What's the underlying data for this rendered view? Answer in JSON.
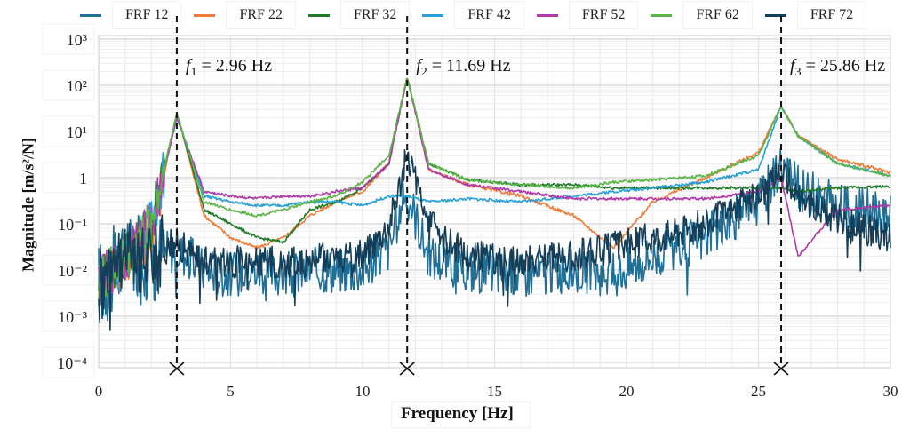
{
  "legend": {
    "items": [
      {
        "label": "FRF 12",
        "color": "#1f6f96"
      },
      {
        "label": "FRF 22",
        "color": "#ee7d3b"
      },
      {
        "label": "FRF 32",
        "color": "#1f7a2a"
      },
      {
        "label": "FRF 42",
        "color": "#2aa0d8"
      },
      {
        "label": "FRF 52",
        "color": "#b03aa8"
      },
      {
        "label": "FRF 62",
        "color": "#5db54a"
      },
      {
        "label": "FRF 72",
        "color": "#143d57"
      }
    ]
  },
  "axes": {
    "ylabel": "Magnitude [m/s²/N]",
    "xlabel": "Frequency [Hz]",
    "yticks": [
      "10³",
      "10²",
      "10¹",
      "1",
      "10⁻¹",
      "10⁻²",
      "10⁻³",
      "10⁻⁴"
    ],
    "xticks": [
      "0",
      "5",
      "10",
      "15",
      "20",
      "25",
      "30"
    ]
  },
  "annotations": [
    {
      "symbol": "f",
      "sub": "1",
      "text": " = 2.96 Hz",
      "freq": 2.96
    },
    {
      "symbol": "f",
      "sub": "2",
      "text": " = 11.69 Hz",
      "freq": 11.69
    },
    {
      "symbol": "f",
      "sub": "3",
      "text": " = 25.86 Hz",
      "freq": 25.86
    }
  ],
  "chart_data": {
    "type": "line",
    "title": "",
    "xlabel": "Frequency [Hz]",
    "ylabel": "Magnitude [m/s²/N]",
    "xlim": [
      0,
      30
    ],
    "ylim": [
      0.0001,
      1000
    ],
    "yscale": "log",
    "grid": true,
    "legend_position": "top",
    "x": [
      0,
      1,
      2,
      2.96,
      4,
      5,
      6,
      7,
      8,
      9,
      10,
      11,
      11.69,
      12.5,
      14,
      16,
      18,
      19.5,
      21,
      23,
      25,
      25.86,
      26.5,
      28,
      30
    ],
    "series": [
      {
        "name": "FRF 12",
        "values": [
          0.005,
          0.015,
          0.02,
          0.03,
          0.01,
          0.008,
          0.01,
          0.008,
          0.01,
          0.01,
          0.01,
          0.03,
          0.5,
          0.02,
          0.01,
          0.008,
          0.01,
          0.008,
          0.02,
          0.05,
          0.3,
          2.0,
          0.6,
          0.25,
          0.15
        ]
      },
      {
        "name": "FRF 22",
        "values": [
          0.005,
          0.02,
          0.05,
          25,
          0.15,
          0.05,
          0.03,
          0.05,
          0.15,
          0.3,
          0.5,
          2,
          150,
          1.5,
          0.7,
          0.4,
          0.15,
          0.03,
          0.3,
          1.0,
          3.5,
          35,
          8,
          2.5,
          1.3
        ]
      },
      {
        "name": "FRF 32",
        "values": [
          0.005,
          0.02,
          0.1,
          25,
          0.2,
          0.1,
          0.05,
          0.04,
          0.2,
          0.3,
          0.6,
          2,
          150,
          2,
          0.9,
          0.7,
          0.7,
          0.6,
          0.6,
          0.6,
          0.6,
          0.6,
          0.5,
          0.6,
          0.65
        ]
      },
      {
        "name": "FRF 42",
        "values": [
          0.005,
          0.02,
          0.1,
          20,
          0.4,
          0.3,
          0.25,
          0.25,
          0.3,
          0.3,
          0.25,
          0.4,
          0.4,
          0.3,
          0.35,
          0.3,
          0.4,
          0.5,
          0.6,
          0.8,
          1.5,
          35,
          8,
          2,
          1.1
        ]
      },
      {
        "name": "FRF 52",
        "values": [
          0.005,
          0.02,
          0.1,
          20,
          0.5,
          0.4,
          0.35,
          0.4,
          0.4,
          0.5,
          0.6,
          2,
          150,
          1.5,
          0.7,
          0.5,
          0.35,
          0.35,
          0.35,
          0.35,
          0.5,
          1.0,
          0.02,
          0.2,
          0.25
        ]
      },
      {
        "name": "FRF 62",
        "values": [
          0.005,
          0.02,
          0.1,
          25,
          0.3,
          0.2,
          0.15,
          0.2,
          0.3,
          0.4,
          0.8,
          3,
          150,
          2,
          0.9,
          0.7,
          0.6,
          0.8,
          0.9,
          1.1,
          3,
          35,
          8,
          2,
          1.1
        ]
      },
      {
        "name": "FRF 72",
        "values": [
          0.005,
          0.015,
          0.02,
          0.04,
          0.015,
          0.015,
          0.015,
          0.015,
          0.015,
          0.02,
          0.02,
          0.1,
          3,
          0.1,
          0.02,
          0.015,
          0.02,
          0.03,
          0.05,
          0.1,
          0.4,
          1.5,
          0.4,
          0.12,
          0.05
        ]
      }
    ],
    "annotations": [
      "f1 = 2.96 Hz",
      "f2 = 11.69 Hz",
      "f3 = 25.86 Hz"
    ],
    "markers": [
      {
        "x": 2.96,
        "symbol": "x"
      },
      {
        "x": 11.69,
        "symbol": "x"
      },
      {
        "x": 25.86,
        "symbol": "x"
      }
    ]
  }
}
